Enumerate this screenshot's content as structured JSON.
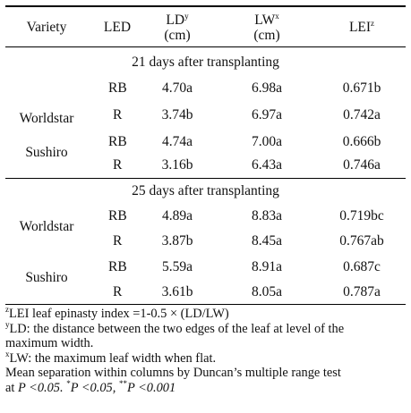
{
  "header": {
    "variety": "Variety",
    "led": "LED",
    "ld": "LD",
    "ld_sup": "y",
    "lw": "LW",
    "lw_sup": "x",
    "unit": "(cm)",
    "lei": "LEI",
    "lei_sup": "z"
  },
  "sections": [
    {
      "title": "21 days after transplanting",
      "groups": [
        {
          "variety": "Worldstar",
          "rows": [
            {
              "led": "RB",
              "ld": "4.70a",
              "lw": "6.98a",
              "lei": "0.671b"
            },
            {
              "led": "R",
              "ld": "3.74b",
              "lw": "6.97a",
              "lei": "0.742a"
            }
          ]
        },
        {
          "variety": "Sushiro",
          "rows": [
            {
              "led": "RB",
              "ld": "4.74a",
              "lw": "7.00a",
              "lei": "0.666b"
            },
            {
              "led": "R",
              "ld": "3.16b",
              "lw": "6.43a",
              "lei": "0.746a"
            }
          ]
        }
      ]
    },
    {
      "title": "25 days after transplanting",
      "groups": [
        {
          "variety": "Worldstar",
          "rows": [
            {
              "led": "RB",
              "ld": "4.89a",
              "lw": "8.83a",
              "lei": "0.719bc"
            },
            {
              "led": "R",
              "ld": "3.87b",
              "lw": "8.45a",
              "lei": "0.767ab"
            }
          ]
        },
        {
          "variety": "Sushiro",
          "rows": [
            {
              "led": "RB",
              "ld": "5.59a",
              "lw": "8.91a",
              "lei": "0.687c"
            },
            {
              "led": "R",
              "ld": "3.61b",
              "lw": "8.05a",
              "lei": "0.787a"
            }
          ]
        }
      ]
    }
  ],
  "footnotes": {
    "z_mark": "z",
    "z_text": "LEI leaf epinasty index =1-0.5 × (LD/LW)",
    "y_mark": "y",
    "y_text_1": "LD: the distance between the two edges of the leaf at level of the",
    "y_text_2": "maximum width.",
    "x_mark": "x",
    "x_text": "LW: the maximum leaf width when flat.",
    "mean_1": "Mean separation within columns by Duncan’s multiple range test",
    "mean_2_prefix": "at ",
    "p1": "P <0.05.",
    "star1": "*",
    "p2": "P <0.05,",
    "star2": "**",
    "p3": "P <0.001"
  }
}
